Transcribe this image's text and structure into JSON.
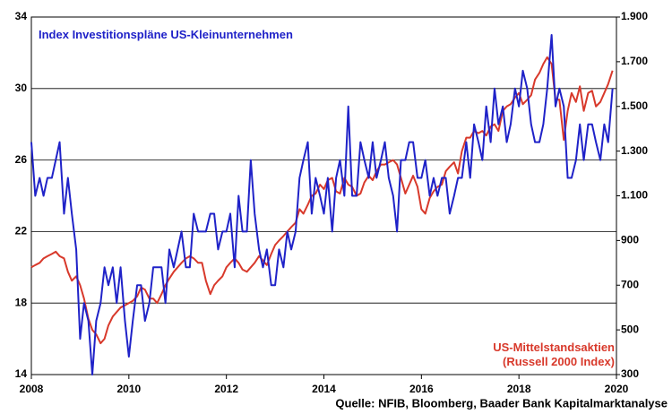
{
  "chart_data": {
    "type": "line",
    "source": "Quelle: NFIB, Bloomberg, Baader Bank Kapitalmarktanalyse",
    "xlim": [
      2008,
      2020
    ],
    "xticks": [
      2008,
      2010,
      2012,
      2014,
      2016,
      2018,
      2020
    ],
    "ylim": [
      14,
      34
    ],
    "yticks": [
      14,
      18,
      22,
      26,
      30,
      34
    ],
    "y2lim": [
      300,
      1900
    ],
    "y2ticks": [
      300,
      500,
      700,
      900,
      {
        "value": 1100,
        "label": "1.100"
      },
      {
        "value": 1300,
        "label": "1.300"
      },
      {
        "value": 1500,
        "label": "1.500"
      },
      {
        "value": 1700,
        "label": "1.700"
      },
      {
        "value": 1900,
        "label": "1.900"
      }
    ],
    "grid": true,
    "x": [
      2008,
      2008.08,
      2008.17,
      2008.25,
      2008.33,
      2008.42,
      2008.5,
      2008.58,
      2008.67,
      2008.75,
      2008.83,
      2008.92,
      2009,
      2009.08,
      2009.17,
      2009.25,
      2009.33,
      2009.42,
      2009.5,
      2009.58,
      2009.67,
      2009.75,
      2009.83,
      2009.92,
      2010,
      2010.08,
      2010.17,
      2010.25,
      2010.33,
      2010.42,
      2010.5,
      2010.58,
      2010.67,
      2010.75,
      2010.83,
      2010.92,
      2011,
      2011.08,
      2011.17,
      2011.25,
      2011.33,
      2011.42,
      2011.5,
      2011.58,
      2011.67,
      2011.75,
      2011.83,
      2011.92,
      2012,
      2012.08,
      2012.17,
      2012.25,
      2012.33,
      2012.42,
      2012.5,
      2012.58,
      2012.67,
      2012.75,
      2012.83,
      2012.92,
      2013,
      2013.08,
      2013.17,
      2013.25,
      2013.33,
      2013.42,
      2013.5,
      2013.58,
      2013.67,
      2013.75,
      2013.83,
      2013.92,
      2014,
      2014.08,
      2014.17,
      2014.25,
      2014.33,
      2014.42,
      2014.5,
      2014.58,
      2014.67,
      2014.75,
      2014.83,
      2014.92,
      2015,
      2015.08,
      2015.17,
      2015.25,
      2015.33,
      2015.42,
      2015.5,
      2015.58,
      2015.67,
      2015.75,
      2015.83,
      2015.92,
      2016,
      2016.08,
      2016.17,
      2016.25,
      2016.33,
      2016.42,
      2016.5,
      2016.58,
      2016.67,
      2016.75,
      2016.83,
      2016.92,
      2017,
      2017.08,
      2017.17,
      2017.25,
      2017.33,
      2017.42,
      2017.5,
      2017.58,
      2017.67,
      2017.75,
      2017.83,
      2017.92,
      2018,
      2018.08,
      2018.17,
      2018.25,
      2018.33,
      2018.42,
      2018.5,
      2018.58,
      2018.67,
      2018.75,
      2018.83,
      2018.92,
      2019,
      2019.08,
      2019.17,
      2019.25,
      2019.33,
      2019.42,
      2019.5,
      2019.58,
      2019.67,
      2019.75,
      2019.83,
      2019.92
    ],
    "series": [
      {
        "name": "Index Investitionspläne US-Kleinunternehmen",
        "color": "#1f22c8",
        "axis": "y",
        "values": [
          27,
          24,
          25,
          24,
          25,
          25,
          26,
          27,
          23,
          25,
          23,
          21,
          16,
          18,
          17,
          14,
          17,
          18,
          20,
          19,
          20,
          18,
          20,
          17,
          15,
          17,
          19,
          19,
          17,
          18,
          20,
          20,
          20,
          18,
          21,
          20,
          21,
          22,
          20,
          20,
          23,
          22,
          22,
          22,
          23,
          23,
          21,
          22,
          22,
          23,
          20,
          24,
          22,
          22,
          26,
          23,
          21,
          20,
          21,
          19,
          19,
          21,
          20,
          22,
          21,
          22,
          25,
          26,
          27,
          23,
          25,
          24,
          23,
          25,
          22,
          25,
          26,
          24,
          29,
          24,
          24,
          27,
          26,
          25,
          27,
          25,
          26,
          27,
          25,
          24,
          22,
          26,
          26,
          27,
          27,
          25,
          25,
          26,
          24,
          25,
          24,
          25,
          25,
          23,
          24,
          25,
          25,
          27,
          25,
          28,
          27,
          26,
          29,
          27,
          30,
          28,
          29,
          27,
          28,
          30,
          29,
          31,
          30,
          28,
          27,
          27,
          28,
          30,
          33,
          29,
          30,
          29,
          25,
          25,
          26,
          28,
          26,
          28,
          28,
          27,
          26,
          28,
          27,
          30
        ]
      },
      {
        "name": "US-Mittelstandsaktien (Russell 2000 Index)",
        "color": "#d8392b",
        "axis": "y2",
        "values": [
          780,
          790,
          800,
          820,
          830,
          840,
          850,
          830,
          820,
          760,
          720,
          740,
          700,
          640,
          550,
          500,
          480,
          440,
          460,
          520,
          560,
          580,
          600,
          610,
          620,
          630,
          650,
          690,
          680,
          640,
          640,
          620,
          660,
          700,
          730,
          760,
          780,
          800,
          820,
          830,
          820,
          800,
          800,
          720,
          660,
          700,
          720,
          740,
          780,
          800,
          820,
          800,
          770,
          760,
          780,
          800,
          830,
          810,
          790,
          840,
          880,
          900,
          920,
          940,
          960,
          980,
          1040,
          1020,
          1060,
          1100,
          1110,
          1150,
          1130,
          1170,
          1180,
          1120,
          1110,
          1180,
          1150,
          1140,
          1100,
          1110,
          1160,
          1190,
          1170,
          1210,
          1240,
          1240,
          1250,
          1260,
          1240,
          1180,
          1110,
          1150,
          1190,
          1140,
          1040,
          1020,
          1090,
          1120,
          1140,
          1150,
          1210,
          1230,
          1250,
          1200,
          1300,
          1360,
          1360,
          1390,
          1380,
          1390,
          1370,
          1410,
          1420,
          1390,
          1480,
          1500,
          1510,
          1540,
          1560,
          1510,
          1530,
          1550,
          1620,
          1650,
          1690,
          1720,
          1690,
          1530,
          1530,
          1350,
          1480,
          1560,
          1520,
          1590,
          1480,
          1560,
          1570,
          1500,
          1520,
          1560,
          1600,
          1660
        ]
      }
    ]
  }
}
